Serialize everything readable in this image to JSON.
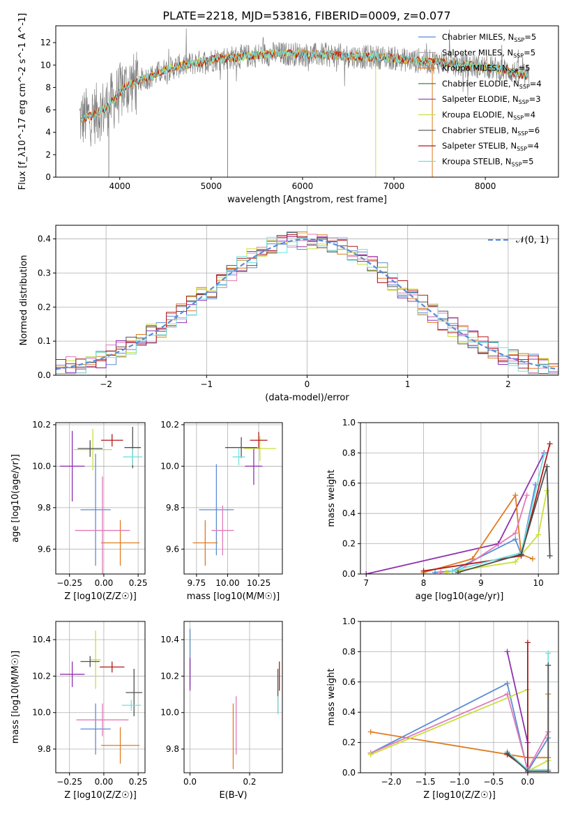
{
  "figure": {
    "title": "PLATE=2218, MJD=53816, FIBERID=0009, z=0.077"
  },
  "colors": {
    "Chabrier MILES": "#5b8bd6",
    "Salpeter MILES": "#a0a0a0",
    "Kroupa MILES": "#e07b20",
    "Chabrier ELODIE": "#3a8a3a",
    "Salpeter ELODIE": "#9030b0",
    "Kroupa ELODIE": "#c8e03c",
    "Chabrier STELIB": "#505050",
    "Salpeter STELIB": "#b01818",
    "Kroupa STELIB": "#70e0e0",
    "pink": "#e07ab8",
    "gray_data": "#808080",
    "gauss": "#5b8bd6"
  },
  "chart_data": [
    {
      "id": "spectrum",
      "type": "line",
      "title": "PLATE=2218, MJD=53816, FIBERID=0009, z=0.077",
      "xlabel": "wavelength [Angstrom, rest frame]",
      "ylabel": "Flux [f_λ10^-17 erg cm^-2 s^-1 A^-1]",
      "xlim": [
        3300,
        8800
      ],
      "ylim": [
        0,
        13.5
      ],
      "xticks": [
        "4000",
        "5000",
        "6000",
        "7000",
        "8000"
      ],
      "yticks": [
        "0",
        "2",
        "4",
        "6",
        "8",
        "10",
        "12"
      ],
      "legend_position": "right",
      "legend": [
        {
          "label": "Chabrier MILES",
          "nssp": "5"
        },
        {
          "label": "Salpeter MILES",
          "nssp": "5"
        },
        {
          "label": "Kroupa MILES",
          "nssp": "5"
        },
        {
          "label": "Chabrier ELODIE",
          "nssp": "4"
        },
        {
          "label": "Salpeter ELODIE",
          "nssp": "3"
        },
        {
          "label": "Kroupa ELODIE",
          "nssp": "4"
        },
        {
          "label": "Chabrier STELIB",
          "nssp": "6"
        },
        {
          "label": "Salpeter STELIB",
          "nssp": "4"
        },
        {
          "label": "Kroupa STELIB",
          "nssp": "5"
        }
      ],
      "continuum_x": [
        3580,
        3700,
        3850,
        3950,
        4050,
        4200,
        4350,
        4500,
        4700,
        4900,
        5100,
        5300,
        5500,
        5700,
        5900,
        6100,
        6300,
        6500,
        6700,
        6900,
        7100,
        7300,
        7500,
        7700,
        7900,
        8100,
        8300,
        8450
      ],
      "continuum_y": [
        5.2,
        5.5,
        6.2,
        7.0,
        8.0,
        8.6,
        9.0,
        9.6,
        10.0,
        10.3,
        10.6,
        10.7,
        10.9,
        11.0,
        11.0,
        10.9,
        10.9,
        10.8,
        10.7,
        10.7,
        10.5,
        10.3,
        10.3,
        10.0,
        9.9,
        9.7,
        9.4,
        9.0
      ],
      "dropouts": [
        {
          "x": 5180,
          "ymin": 0
        },
        {
          "x": 6800,
          "ymin": 0
        },
        {
          "x": 7420,
          "ymin": 0
        },
        {
          "x": 3880,
          "ymin": 0
        }
      ]
    },
    {
      "id": "residuals",
      "type": "bar",
      "xlabel": "(data-model)/error",
      "ylabel": "Normed distribution",
      "xlim": [
        -2.5,
        2.5
      ],
      "ylim": [
        0,
        0.44
      ],
      "xticks": [
        "−2",
        "−1",
        "0",
        "1",
        "2"
      ],
      "yticks": [
        "0.0",
        "0.1",
        "0.2",
        "0.3",
        "0.4"
      ],
      "grid": true,
      "legend_position": "top-right",
      "gauss_label": "𝒩(0, 1)",
      "bin_width": 0.1
    },
    {
      "id": "age_vs_Z",
      "type": "scatter",
      "xlabel": "Z [log10(Z/Z☉)]",
      "ylabel": "age  [log10(age/yr)]",
      "xlim": [
        -0.35,
        0.3
      ],
      "ylim": [
        9.48,
        10.21
      ],
      "xticks": [
        "−0.25",
        "0.00",
        "0.25"
      ],
      "yticks": [
        "9.6",
        "9.8",
        "10.0",
        "10.2"
      ],
      "grid": true,
      "points": [
        {
          "model": "Chabrier MILES",
          "x": -0.06,
          "y": 9.79,
          "xerr": 0.11,
          "yerr": 0.27
        },
        {
          "model": "Kroupa MILES",
          "x": 0.12,
          "y": 9.63,
          "xerr": 0.14,
          "yerr": 0.11
        },
        {
          "model": "pink",
          "x": -0.01,
          "y": 9.69,
          "xerr": 0.2,
          "yerr": 0.26
        },
        {
          "model": "Salpeter ELODIE",
          "x": -0.23,
          "y": 10.0,
          "xerr": 0.09,
          "yerr": 0.17
        },
        {
          "model": "Kroupa ELODIE",
          "x": -0.08,
          "y": 10.08,
          "xerr": 0.14,
          "yerr": 0.1
        },
        {
          "model": "Chabrier STELIB",
          "x": -0.1,
          "y": 10.085,
          "xerr": 0.09,
          "yerr": 0.04
        },
        {
          "model": "Salpeter STELIB",
          "x": 0.06,
          "y": 10.125,
          "xerr": 0.08,
          "yerr": 0.03
        },
        {
          "model": "Chabrier STELIB",
          "x": 0.21,
          "y": 10.09,
          "xerr": 0.06,
          "yerr": 0.1
        },
        {
          "model": "Kroupa STELIB",
          "x": 0.21,
          "y": 10.045,
          "xerr": 0.07,
          "yerr": 0.04
        }
      ]
    },
    {
      "id": "age_vs_mass",
      "type": "scatter",
      "xlabel": "mass [log10(M/M☉)]",
      "ylabel": "",
      "xlim": [
        9.65,
        10.44
      ],
      "ylim": [
        9.48,
        10.21
      ],
      "xticks": [
        "9.75",
        "10.00",
        "10.25"
      ],
      "yticks": [
        "9.6",
        "9.8",
        "10.0",
        "10.2"
      ],
      "grid": true,
      "points": [
        {
          "model": "Chabrier MILES",
          "x": 9.91,
          "y": 9.79,
          "xerr": 0.14,
          "yerr": 0.22
        },
        {
          "model": "Kroupa MILES",
          "x": 9.82,
          "y": 9.63,
          "xerr": 0.1,
          "yerr": 0.11
        },
        {
          "model": "pink",
          "x": 9.96,
          "y": 9.69,
          "xerr": 0.09,
          "yerr": 0.12
        },
        {
          "model": "Salpeter ELODIE",
          "x": 10.21,
          "y": 10.0,
          "xerr": 0.07,
          "yerr": 0.09
        },
        {
          "model": "Kroupa ELODIE",
          "x": 10.26,
          "y": 10.085,
          "xerr": 0.13,
          "yerr": 0.06
        },
        {
          "model": "Chabrier STELIB",
          "x": 10.11,
          "y": 10.09,
          "xerr": 0.13,
          "yerr": 0.05
        },
        {
          "model": "Salpeter STELIB",
          "x": 10.25,
          "y": 10.125,
          "xerr": 0.07,
          "yerr": 0.04
        },
        {
          "model": "Kroupa STELIB",
          "x": 10.09,
          "y": 10.045,
          "xerr": 0.05,
          "yerr": 0.04
        }
      ]
    },
    {
      "id": "weight_vs_age",
      "type": "line",
      "xlabel": "age  [log10(age/yr)]",
      "ylabel": "mass weight",
      "xlim": [
        6.9,
        10.35
      ],
      "ylim": [
        0,
        1.0
      ],
      "xticks": [
        "7",
        "8",
        "9",
        "10"
      ],
      "yticks": [
        "0.0",
        "0.2",
        "0.4",
        "0.6",
        "0.8",
        "1.0"
      ],
      "grid": true,
      "series": [
        {
          "model": "Salpeter ELODIE",
          "x": [
            7.0,
            9.3,
            10.1
          ],
          "y": [
            0.0,
            0.2,
            0.8
          ]
        },
        {
          "model": "Kroupa MILES",
          "x": [
            8.0,
            8.85,
            9.6,
            9.7,
            9.9
          ],
          "y": [
            0.01,
            0.1,
            0.52,
            0.13,
            0.1
          ]
        },
        {
          "model": "Chabrier MILES",
          "x": [
            8.2,
            8.5,
            9.6,
            9.7,
            9.95
          ],
          "y": [
            0.01,
            0.02,
            0.23,
            0.13,
            0.59
          ]
        },
        {
          "model": "pink",
          "x": [
            8.3,
            8.6,
            9.6,
            9.8
          ],
          "y": [
            0.01,
            0.02,
            0.27,
            0.52
          ]
        },
        {
          "model": "Kroupa ELODIE",
          "x": [
            8.4,
            9.6,
            10.0,
            10.15
          ],
          "y": [
            0.01,
            0.08,
            0.26,
            0.55
          ]
        },
        {
          "model": "Salpeter STELIB",
          "x": [
            8.0,
            9.7,
            10.2
          ],
          "y": [
            0.02,
            0.12,
            0.86
          ]
        },
        {
          "model": "Kroupa STELIB",
          "x": [
            8.5,
            9.7,
            10.1
          ],
          "y": [
            0.02,
            0.14,
            0.79
          ]
        },
        {
          "model": "Chabrier STELIB",
          "x": [
            8.6,
            9.7,
            10.15,
            10.2
          ],
          "y": [
            0.01,
            0.13,
            0.71,
            0.12
          ]
        }
      ]
    },
    {
      "id": "mass_vs_Z",
      "type": "scatter",
      "xlabel": "Z [log10(Z/Z☉)]",
      "ylabel": "mass [log10(M/M☉)]",
      "xlim": [
        -0.35,
        0.3
      ],
      "ylim": [
        9.67,
        10.5
      ],
      "xticks": [
        "−0.25",
        "0.00",
        "0.25"
      ],
      "yticks": [
        "9.8",
        "10.0",
        "10.2",
        "10.4"
      ],
      "grid": true,
      "points": [
        {
          "model": "Chabrier MILES",
          "x": -0.06,
          "y": 9.91,
          "xerr": 0.11,
          "yerr": 0.14
        },
        {
          "model": "Kroupa MILES",
          "x": 0.12,
          "y": 9.82,
          "xerr": 0.14,
          "yerr": 0.1
        },
        {
          "model": "pink",
          "x": -0.01,
          "y": 9.96,
          "xerr": 0.19,
          "yerr": 0.09
        },
        {
          "model": "Salpeter ELODIE",
          "x": -0.23,
          "y": 10.21,
          "xerr": 0.09,
          "yerr": 0.07
        },
        {
          "model": "Kroupa ELODIE",
          "x": -0.06,
          "y": 10.29,
          "xerr": 0.04,
          "yerr": 0.16
        },
        {
          "model": "Chabrier STELIB",
          "x": -0.1,
          "y": 10.28,
          "xerr": 0.07,
          "yerr": 0.03
        },
        {
          "model": "Salpeter STELIB",
          "x": 0.06,
          "y": 10.25,
          "xerr": 0.09,
          "yerr": 0.03
        },
        {
          "model": "Chabrier STELIB",
          "x": 0.22,
          "y": 10.11,
          "xerr": 0.06,
          "yerr": 0.13
        },
        {
          "model": "Kroupa STELIB",
          "x": 0.2,
          "y": 10.04,
          "xerr": 0.07,
          "yerr": 0.03
        }
      ]
    },
    {
      "id": "mass_vs_EBV",
      "type": "scatter",
      "xlabel": "E(B-V)",
      "ylabel": "",
      "xlim": [
        -0.02,
        0.31
      ],
      "ylim": [
        9.67,
        10.5
      ],
      "xticks": [
        "0.0",
        "0.2"
      ],
      "yticks": [
        "9.8",
        "10.0",
        "10.2",
        "10.4"
      ],
      "grid": true,
      "points": [
        {
          "model": "Kroupa ELODIE",
          "x": 0.0,
          "y": 10.29,
          "xerr": 0,
          "yerr": 0.16
        },
        {
          "model": "Chabrier MILES",
          "x": 0.0,
          "y": 10.3,
          "xerr": 0,
          "yerr": 0.16
        },
        {
          "model": "Salpeter ELODIE",
          "x": 0.0,
          "y": 10.21,
          "xerr": 0,
          "yerr": 0.09
        },
        {
          "model": "Kroupa MILES",
          "x": 0.145,
          "y": 9.87,
          "xerr": 0,
          "yerr": 0.18
        },
        {
          "model": "pink",
          "x": 0.155,
          "y": 9.93,
          "xerr": 0,
          "yerr": 0.16
        },
        {
          "model": "Salpeter STELIB",
          "x": 0.3,
          "y": 10.2,
          "xerr": 0,
          "yerr": 0.08
        },
        {
          "model": "Chabrier STELIB",
          "x": 0.295,
          "y": 10.12,
          "xerr": 0,
          "yerr": 0.12
        },
        {
          "model": "Kroupa STELIB",
          "x": 0.295,
          "y": 10.04,
          "xerr": 0,
          "yerr": 0.05
        }
      ]
    },
    {
      "id": "weight_vs_Z",
      "type": "line",
      "xlabel": "Z [log10(Z/Z☉)]",
      "ylabel": "mass weight",
      "xlim": [
        -2.45,
        0.45
      ],
      "ylim": [
        0,
        1.0
      ],
      "xticks": [
        "−2.0",
        "−1.5",
        "−1.0",
        "−0.5",
        "0.0"
      ],
      "yticks": [
        "0.0",
        "0.2",
        "0.4",
        "0.6",
        "0.8",
        "1.0"
      ],
      "grid": true,
      "series": [
        {
          "model": "Kroupa MILES",
          "x": [
            -2.3,
            0.0,
            0.3,
            0.3
          ],
          "y": [
            0.27,
            0.1,
            0.1,
            0.52
          ]
        },
        {
          "model": "Chabrier MILES",
          "x": [
            -2.3,
            -0.3,
            0.0,
            0.3
          ],
          "y": [
            0.13,
            0.59,
            0.01,
            0.23
          ]
        },
        {
          "model": "pink",
          "x": [
            -2.3,
            -0.3,
            0.0,
            0.3
          ],
          "y": [
            0.13,
            0.52,
            0.02,
            0.27
          ]
        },
        {
          "model": "Kroupa ELODIE",
          "x": [
            -2.3,
            0.0,
            0.0,
            0.3
          ],
          "y": [
            0.12,
            0.55,
            0.01,
            0.08
          ]
        },
        {
          "model": "Salpeter ELODIE",
          "x": [
            -0.3,
            0.0,
            0.0
          ],
          "y": [
            0.8,
            0.2,
            0.0
          ]
        },
        {
          "model": "Salpeter STELIB",
          "x": [
            -0.3,
            0.0,
            0.0
          ],
          "y": [
            0.12,
            0.02,
            0.86
          ]
        },
        {
          "model": "Kroupa STELIB",
          "x": [
            -0.3,
            0.0,
            0.3,
            0.3
          ],
          "y": [
            0.14,
            0.02,
            0.02,
            0.79
          ]
        },
        {
          "model": "Chabrier STELIB",
          "x": [
            -0.3,
            0.0,
            0.3,
            0.3
          ],
          "y": [
            0.13,
            0.01,
            0.01,
            0.71
          ]
        }
      ]
    }
  ]
}
